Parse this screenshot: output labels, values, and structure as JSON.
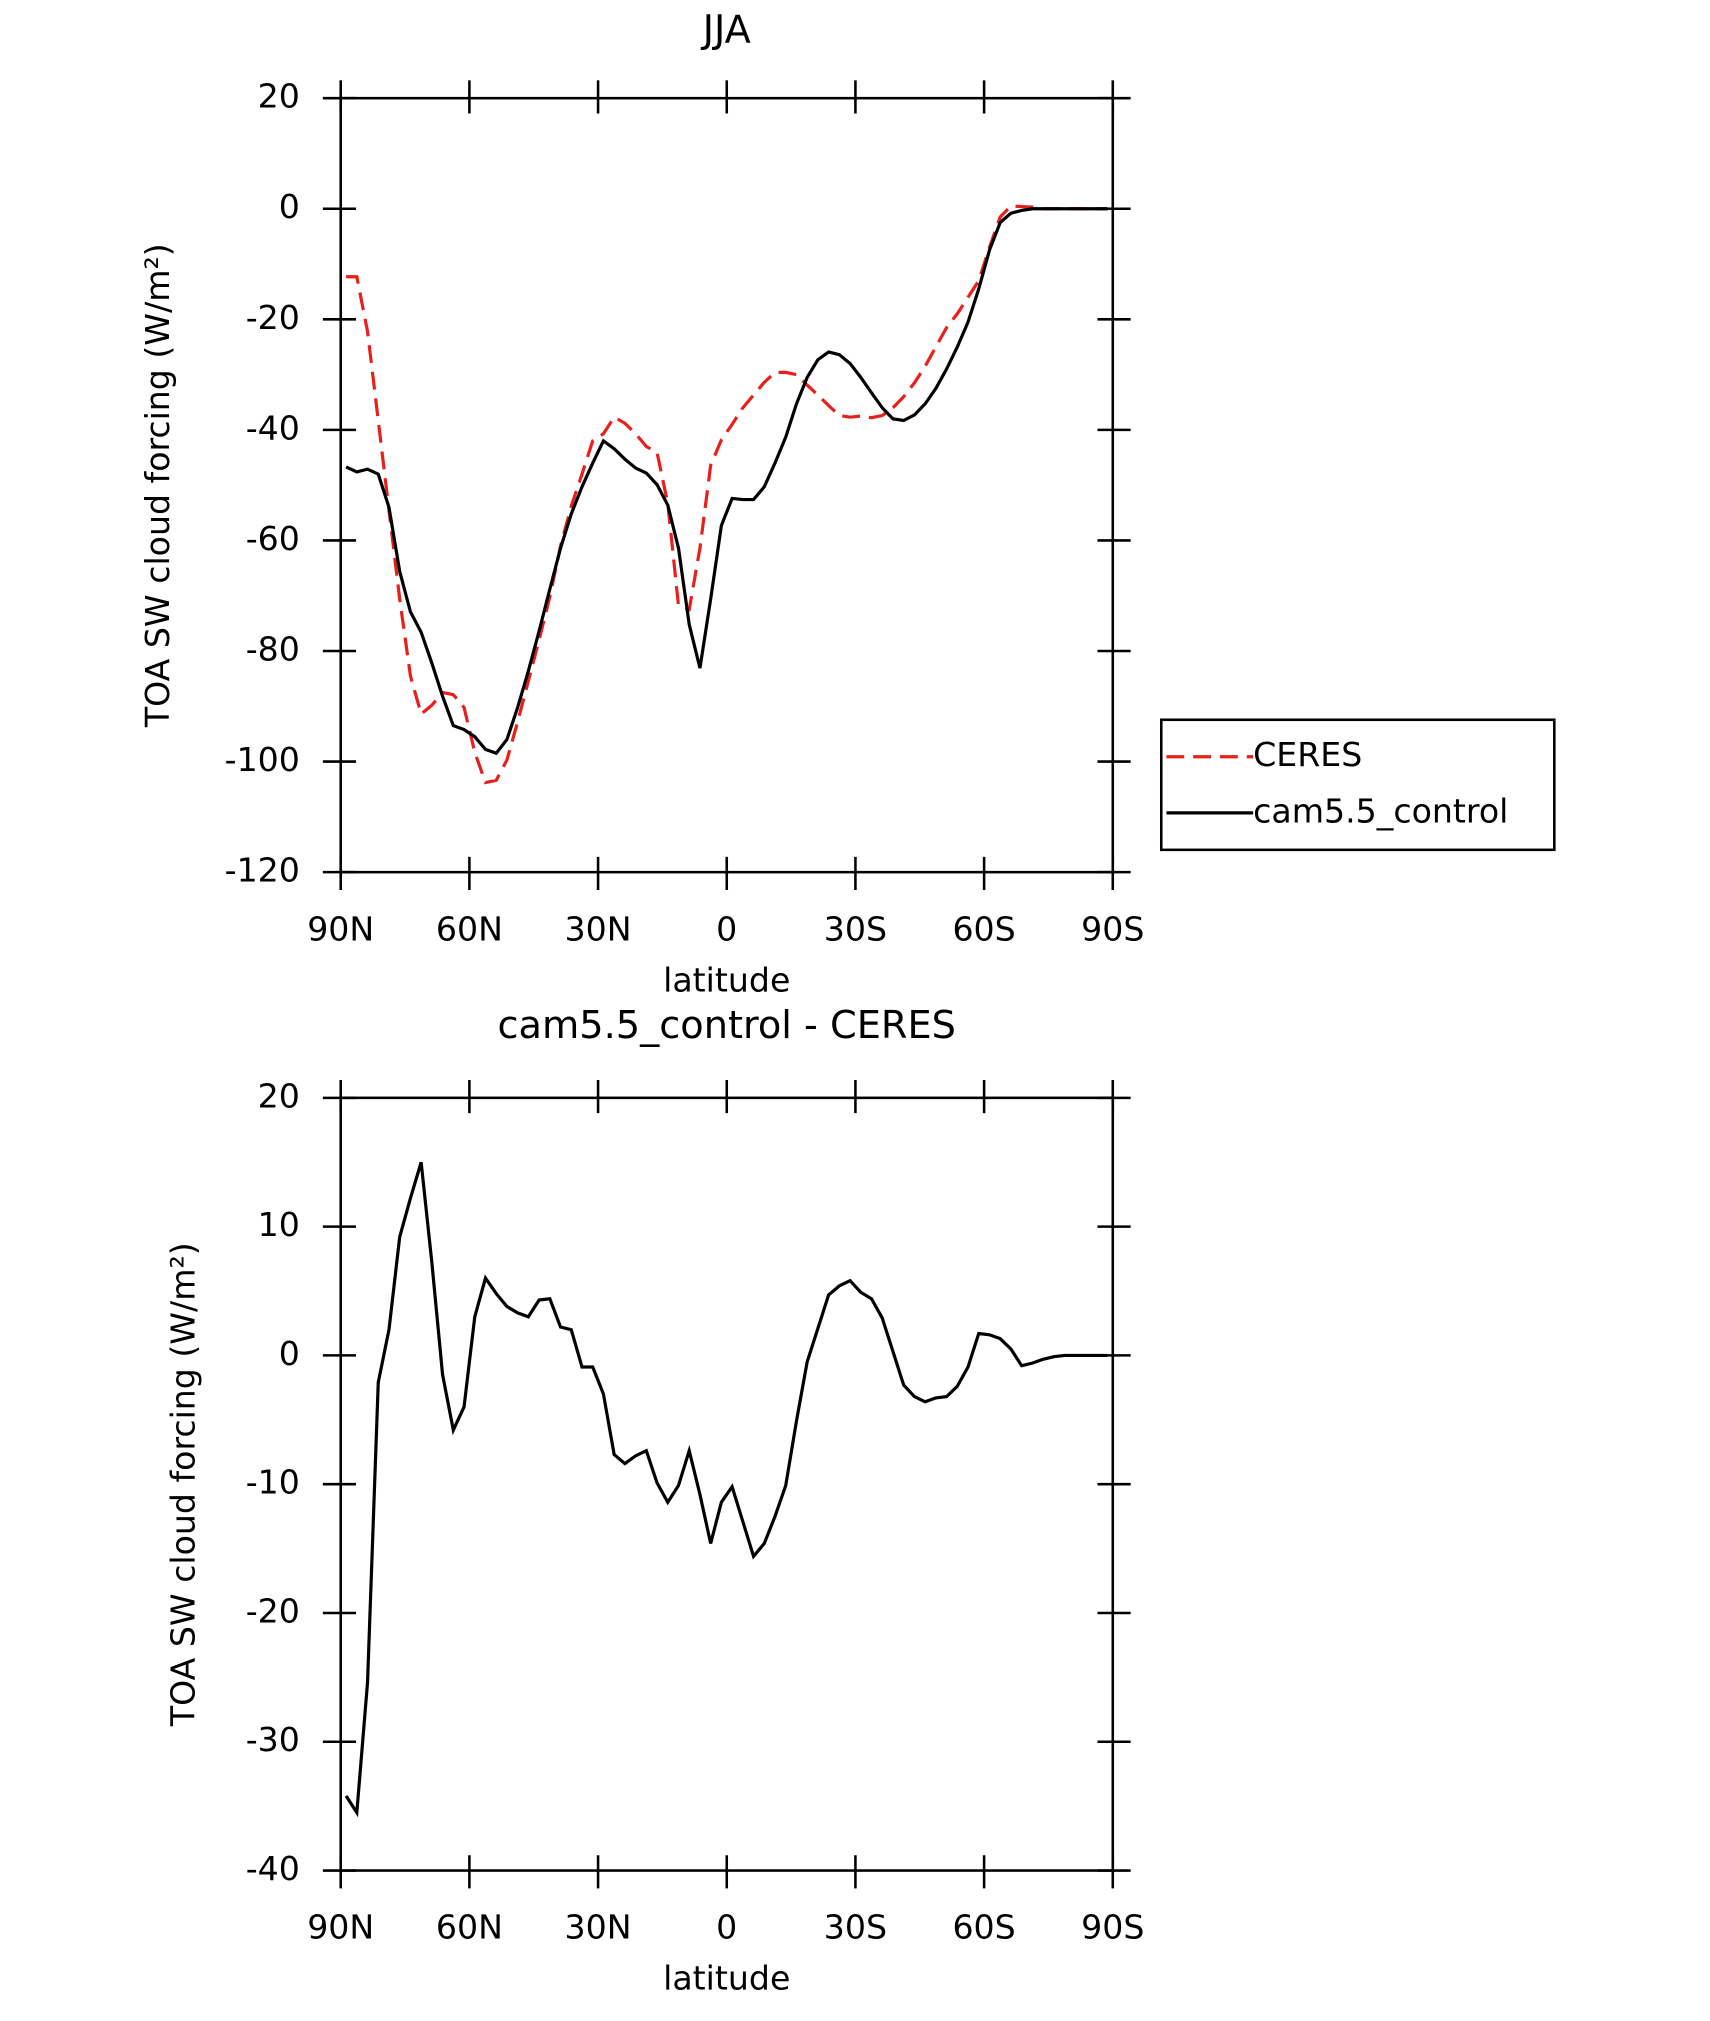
{
  "chart_data": [
    {
      "type": "line",
      "title": "JJA",
      "xlabel": "latitude",
      "ylabel": "TOA SW cloud forcing (W/m²)",
      "x": [
        88.75,
        86.25,
        83.75,
        81.25,
        78.75,
        76.25,
        73.75,
        71.25,
        68.75,
        66.25,
        63.75,
        61.25,
        58.75,
        56.25,
        53.75,
        51.25,
        48.75,
        46.25,
        43.75,
        41.25,
        38.75,
        36.25,
        33.75,
        31.25,
        28.75,
        26.25,
        23.75,
        21.25,
        18.75,
        16.25,
        13.75,
        11.25,
        8.75,
        6.25,
        3.75,
        1.25,
        -1.25,
        -3.75,
        -6.25,
        -8.75,
        -11.25,
        -13.75,
        -16.25,
        -18.75,
        -21.25,
        -23.75,
        -26.25,
        -28.75,
        -31.25,
        -33.75,
        -36.25,
        -38.75,
        -41.25,
        -43.75,
        -46.25,
        -48.75,
        -51.25,
        -53.75,
        -56.25,
        -58.75,
        -61.25,
        -63.75,
        -66.25,
        -68.75,
        -71.25,
        -73.75,
        -76.25,
        -78.75,
        -81.25,
        -83.75,
        -86.25,
        -88.75
      ],
      "series": [
        {
          "name": "CERES",
          "color": "#e8201c",
          "linestyle": "dashed",
          "values": [
            -12.3,
            -12.3,
            -22.2,
            -38.3,
            -54.5,
            -70.6,
            -84.5,
            -91.4,
            -89.8,
            -87.5,
            -87.9,
            -90.2,
            -98.3,
            -103.8,
            -103.4,
            -99.7,
            -92.8,
            -85.4,
            -78,
            -70.2,
            -61,
            -53.8,
            -48,
            -42,
            -40.7,
            -37.7,
            -38.8,
            -40.7,
            -43,
            -44.1,
            -53.3,
            -71.8,
            -72.5,
            -61.4,
            -46.4,
            -41.8,
            -39,
            -36,
            -33.7,
            -31.4,
            -29.6,
            -29.6,
            -30,
            -31.9,
            -33.7,
            -35.6,
            -37.4,
            -37.7,
            -37.5,
            -37.8,
            -37.4,
            -36,
            -34,
            -31.5,
            -28.5,
            -25,
            -21.5,
            -19,
            -16,
            -13,
            -7,
            -1.5,
            0.5,
            0.4,
            0.3,
            0,
            0,
            0,
            0,
            0,
            0,
            0
          ]
        },
        {
          "name": "cam5.5_control",
          "color": "#000000",
          "linestyle": "solid",
          "values": [
            -46.7,
            -47.6,
            -47.1,
            -48,
            -54,
            -65.6,
            -72.9,
            -76.6,
            -82.2,
            -88.2,
            -93.5,
            -94.2,
            -95.5,
            -97.8,
            -98.5,
            -96,
            -90.2,
            -83.6,
            -76.4,
            -68.8,
            -61.4,
            -55.2,
            -50.3,
            -46,
            -42,
            -43.4,
            -45.3,
            -46.9,
            -47.8,
            -49.9,
            -53.6,
            -61.4,
            -75.2,
            -83.1,
            -70.6,
            -57.3,
            -52.4,
            -52.6,
            -52.6,
            -50.3,
            -46,
            -41.3,
            -35.3,
            -30.5,
            -27.3,
            -25.9,
            -26.4,
            -28,
            -30.5,
            -33.3,
            -36,
            -38,
            -38.3,
            -37.3,
            -35.3,
            -32.5,
            -29,
            -25,
            -20.5,
            -14.5,
            -7.5,
            -2.5,
            -0.8,
            -0.3,
            0,
            0,
            0,
            0,
            0,
            0,
            0,
            0
          ]
        }
      ],
      "xlim": [
        90,
        -90
      ],
      "xticks": [
        {
          "value": 90,
          "label": "90N"
        },
        {
          "value": 60,
          "label": "60N"
        },
        {
          "value": 30,
          "label": "30N"
        },
        0,
        {
          "value": -30,
          "label": "30S"
        },
        {
          "value": -60,
          "label": "60S"
        },
        {
          "value": -90,
          "label": "90S"
        }
      ],
      "ylim": [
        -120,
        20
      ],
      "yticks": [
        -120,
        -100,
        -80,
        -60,
        -40,
        -20,
        0,
        20
      ],
      "legend": "right"
    },
    {
      "type": "line",
      "title": "cam5.5_control - CERES",
      "xlabel": "latitude",
      "ylabel": "TOA SW cloud forcing (W/m²)",
      "x": [
        88.75,
        86.25,
        83.75,
        81.25,
        78.75,
        76.25,
        73.75,
        71.25,
        68.75,
        66.25,
        63.75,
        61.25,
        58.75,
        56.25,
        53.75,
        51.25,
        48.75,
        46.25,
        43.75,
        41.25,
        38.75,
        36.25,
        33.75,
        31.25,
        28.75,
        26.25,
        23.75,
        21.25,
        18.75,
        16.25,
        13.75,
        11.25,
        8.75,
        6.25,
        3.75,
        1.25,
        -1.25,
        -3.75,
        -6.25,
        -8.75,
        -11.25,
        -13.75,
        -16.25,
        -18.75,
        -21.25,
        -23.75,
        -26.25,
        -28.75,
        -31.25,
        -33.75,
        -36.25,
        -38.75,
        -41.25,
        -43.75,
        -46.25,
        -48.75,
        -51.25,
        -53.75,
        -56.25,
        -58.75,
        -61.25,
        -63.75,
        -66.25,
        -68.75,
        -71.25,
        -73.75,
        -76.25,
        -78.75,
        -81.25,
        -83.75,
        -86.25,
        -88.75
      ],
      "color": "#000000",
      "values": [
        -34.2,
        -35.5,
        -25.4,
        -2.1,
        2,
        9.2,
        12.2,
        15,
        7.2,
        -1.5,
        -5.8,
        -4,
        3,
        6,
        4.8,
        3.8,
        3.3,
        3,
        4.3,
        4.4,
        2.2,
        2,
        -0.9,
        -0.9,
        -3,
        -7.7,
        -8.4,
        -7.8,
        -7.4,
        -9.9,
        -11.4,
        -10.1,
        -7.4,
        -10.8,
        -14.6,
        -11.4,
        -10.2,
        -12.9,
        -15.6,
        -14.6,
        -12.5,
        -10.1,
        -5.1,
        -0.5,
        2.1,
        4.7,
        5.4,
        5.8,
        4.9,
        4.4,
        2.9,
        0.3,
        -2.3,
        -3.2,
        -3.6,
        -3.3,
        -3.2,
        -2.4,
        -0.9,
        1.7,
        1.6,
        1.3,
        0.5,
        -0.8,
        -0.6,
        -0.3,
        -0.1,
        0,
        0,
        0,
        0,
        0
      ],
      "xlim": [
        90,
        -90
      ],
      "xticks": [
        {
          "value": 90,
          "label": "90N"
        },
        {
          "value": 60,
          "label": "60N"
        },
        {
          "value": 30,
          "label": "30N"
        },
        0,
        {
          "value": -30,
          "label": "30S"
        },
        {
          "value": -60,
          "label": "60S"
        },
        {
          "value": -90,
          "label": "90S"
        }
      ],
      "ylim": [
        -40,
        20
      ],
      "yticks": [
        -40,
        -30,
        -20,
        -10,
        0,
        10,
        20
      ]
    }
  ]
}
